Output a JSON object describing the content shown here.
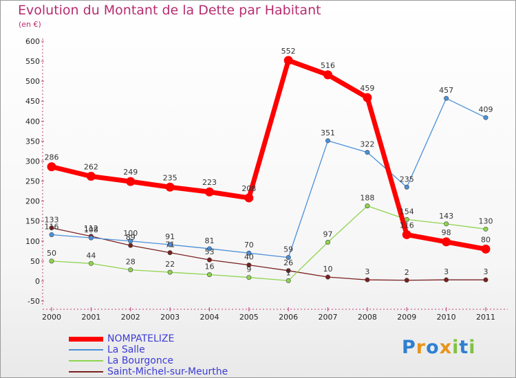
{
  "chart_data": {
    "type": "line",
    "title": "Evolution du Montant de la Dette par Habitant",
    "ylabel": "(en €)",
    "xlabel": "",
    "ylim": [
      -50,
      600
    ],
    "yticks": [
      -50,
      0,
      50,
      100,
      150,
      200,
      250,
      300,
      350,
      400,
      450,
      500,
      550,
      600
    ],
    "categories": [
      "2000",
      "2001",
      "2002",
      "2003",
      "2004",
      "2005",
      "2006",
      "2007",
      "2008",
      "2009",
      "2010",
      "2011"
    ],
    "grid": false,
    "legend": "bottom-left",
    "series": [
      {
        "name": "NOMPATELIZE",
        "color": "#ff0000",
        "values": [
          286,
          262,
          249,
          235,
          223,
          208,
          552,
          516,
          459,
          116,
          98,
          80
        ]
      },
      {
        "name": "La Salle",
        "color": "#4a90d9",
        "values": [
          116,
          108,
          100,
          91,
          81,
          70,
          59,
          351,
          322,
          235,
          457,
          409
        ]
      },
      {
        "name": "La Bourgonce",
        "color": "#8ed44f",
        "values": [
          50,
          44,
          28,
          22,
          16,
          9,
          1,
          97,
          188,
          154,
          143,
          130
        ]
      },
      {
        "name": "Saint-Michel-sur-Meurthe",
        "color": "#7a1f1f",
        "values": [
          133,
          112,
          89,
          71,
          53,
          40,
          26,
          10,
          3,
          2,
          3,
          3
        ]
      }
    ]
  },
  "logo": {
    "letters": [
      "P",
      "r",
      "o",
      "x",
      "i",
      "t",
      "i"
    ],
    "colors": [
      "#2f7fd1",
      "#e6941a",
      "#2f7fd1",
      "#e6941a",
      "#7fc241",
      "#2f7fd1",
      "#7fc241"
    ]
  }
}
